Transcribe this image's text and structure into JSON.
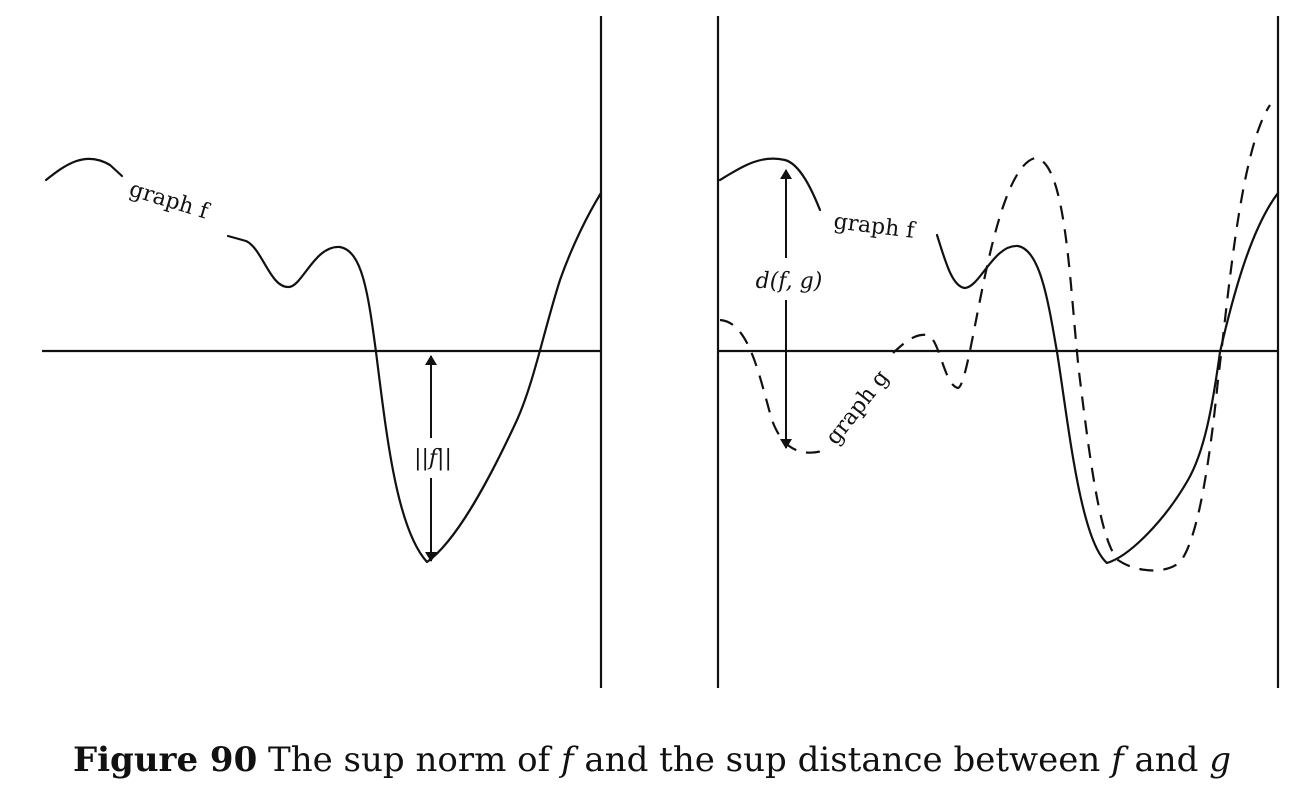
{
  "caption": {
    "label": "Figure 90",
    "text_1": " The sup norm of ",
    "f_1": "f",
    "text_2": " and the sup distance between ",
    "f_2": "f",
    "text_3": " and ",
    "g": "g"
  },
  "left_panel": {
    "graph_f_label": "graph f",
    "norm_label": "||f||"
  },
  "right_panel": {
    "graph_f_label": "graph f",
    "graph_g_label": "graph g",
    "distance_label": "d(f, g)"
  }
}
